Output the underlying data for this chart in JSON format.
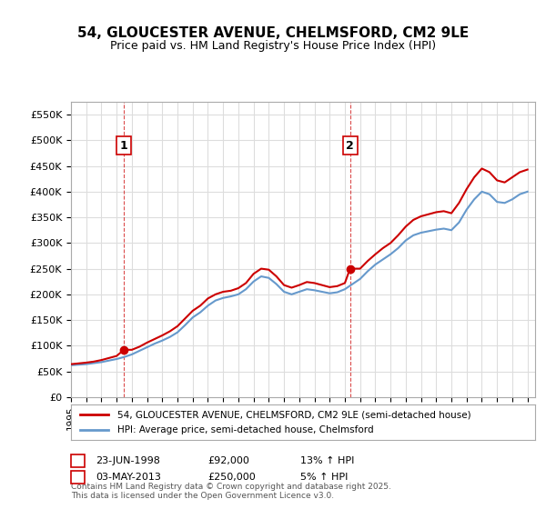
{
  "title_line1": "54, GLOUCESTER AVENUE, CHELMSFORD, CM2 9LE",
  "title_line2": "Price paid vs. HM Land Registry's House Price Index (HPI)",
  "ylabel": "",
  "background_color": "#ffffff",
  "grid_color": "#dddddd",
  "house_color": "#cc0000",
  "hpi_color": "#6699cc",
  "marker1_date_label": "1",
  "marker2_date_label": "2",
  "marker1_x": 1998.48,
  "marker2_x": 2013.34,
  "legend_house": "54, GLOUCESTER AVENUE, CHELMSFORD, CM2 9LE (semi-detached house)",
  "legend_hpi": "HPI: Average price, semi-detached house, Chelmsford",
  "table_row1": [
    "1",
    "23-JUN-1998",
    "£92,000",
    "13% ↑ HPI"
  ],
  "table_row2": [
    "2",
    "03-MAY-2013",
    "£250,000",
    "5% ↑ HPI"
  ],
  "footer": "Contains HM Land Registry data © Crown copyright and database right 2025.\nThis data is licensed under the Open Government Licence v3.0.",
  "ylim_min": 0,
  "ylim_max": 575000,
  "yticks": [
    0,
    50000,
    100000,
    150000,
    200000,
    250000,
    300000,
    350000,
    400000,
    450000,
    500000,
    550000
  ],
  "xmin": 1995,
  "xmax": 2025.5,
  "hpi_years": [
    1995,
    1995.5,
    1996,
    1996.5,
    1997,
    1997.5,
    1998,
    1998.5,
    1999,
    1999.5,
    2000,
    2000.5,
    2001,
    2001.5,
    2002,
    2002.5,
    2003,
    2003.5,
    2004,
    2004.5,
    2005,
    2005.5,
    2006,
    2006.5,
    2007,
    2007.5,
    2008,
    2008.5,
    2009,
    2009.5,
    2010,
    2010.5,
    2011,
    2011.5,
    2012,
    2012.5,
    2013,
    2013.5,
    2014,
    2014.5,
    2015,
    2015.5,
    2016,
    2016.5,
    2017,
    2017.5,
    2018,
    2018.5,
    2019,
    2019.5,
    2020,
    2020.5,
    2021,
    2021.5,
    2022,
    2022.5,
    2023,
    2023.5,
    2024,
    2024.5,
    2025
  ],
  "hpi_values": [
    62000,
    63000,
    64000,
    66000,
    68000,
    71000,
    74000,
    78000,
    83000,
    90000,
    97000,
    104000,
    110000,
    117000,
    126000,
    140000,
    155000,
    165000,
    178000,
    188000,
    193000,
    196000,
    200000,
    210000,
    225000,
    235000,
    232000,
    220000,
    205000,
    200000,
    205000,
    210000,
    208000,
    205000,
    202000,
    204000,
    210000,
    220000,
    230000,
    245000,
    258000,
    268000,
    278000,
    290000,
    305000,
    315000,
    320000,
    323000,
    326000,
    328000,
    325000,
    340000,
    365000,
    385000,
    400000,
    395000,
    380000,
    378000,
    385000,
    395000,
    400000
  ],
  "house_years": [
    1995,
    1995.5,
    1996,
    1996.5,
    1997,
    1997.5,
    1998,
    1998.48,
    1999,
    1999.5,
    2000,
    2000.5,
    2001,
    2001.5,
    2002,
    2002.5,
    2003,
    2003.5,
    2004,
    2004.5,
    2005,
    2005.5,
    2006,
    2006.5,
    2007,
    2007.5,
    2008,
    2008.5,
    2009,
    2009.5,
    2010,
    2010.5,
    2011,
    2011.5,
    2012,
    2012.5,
    2013,
    2013.34,
    2014,
    2014.5,
    2015,
    2015.5,
    2016,
    2016.5,
    2017,
    2017.5,
    2018,
    2018.5,
    2019,
    2019.5,
    2020,
    2020.5,
    2021,
    2021.5,
    2022,
    2022.5,
    2023,
    2023.5,
    2024,
    2024.5,
    2025
  ],
  "house_values": [
    64000,
    65500,
    67000,
    69000,
    72000,
    76000,
    80000,
    92000,
    92000,
    98000,
    106000,
    113000,
    120000,
    128000,
    138000,
    153000,
    168000,
    178000,
    192000,
    200000,
    205000,
    207000,
    212000,
    222000,
    240000,
    250000,
    248000,
    235000,
    218000,
    213000,
    218000,
    224000,
    222000,
    218000,
    214000,
    216000,
    222000,
    250000,
    250000,
    265000,
    278000,
    290000,
    300000,
    315000,
    332000,
    345000,
    352000,
    356000,
    360000,
    362000,
    358000,
    378000,
    405000,
    428000,
    445000,
    438000,
    422000,
    418000,
    428000,
    438000,
    443000
  ]
}
